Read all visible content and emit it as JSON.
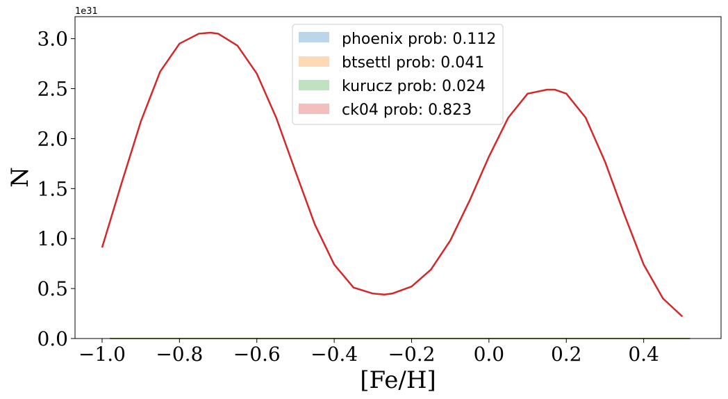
{
  "chart_data": {
    "type": "line",
    "title": "",
    "xlabel": "[Fe/H]",
    "ylabel": "N",
    "y_offset_text": "1e31",
    "xlim": [
      -1.07,
      0.6
    ],
    "ylim": [
      0,
      3.22
    ],
    "x_ticks": [
      -1.0,
      -0.8,
      -0.6,
      -0.4,
      -0.2,
      0.0,
      0.2,
      0.4
    ],
    "x_tick_labels": [
      "−1.0",
      "−0.8",
      "−0.6",
      "−0.4",
      "−0.2",
      "0.0",
      "0.2",
      "0.4"
    ],
    "y_ticks": [
      0.0,
      0.5,
      1.0,
      1.5,
      2.0,
      2.5,
      3.0
    ],
    "y_tick_labels": [
      "0.0",
      "0.5",
      "1.0",
      "1.5",
      "2.0",
      "2.5",
      "3.0"
    ],
    "grid": false,
    "legend_position": "top-center",
    "series": [
      {
        "name": "phoenix prob: 0.112",
        "color": "#1f77b4",
        "x": [
          -0.98,
          0.52
        ],
        "y": [
          0,
          0
        ]
      },
      {
        "name": "btsettl prob: 0.041",
        "color": "#ff7f0e",
        "x": [
          -0.98,
          0.52
        ],
        "y": [
          0,
          0
        ]
      },
      {
        "name": "kurucz prob: 0.024",
        "color": "#2ca02c",
        "x": [
          -0.98,
          0.52
        ],
        "y": [
          0,
          0
        ]
      },
      {
        "name": "ck04 prob: 0.823",
        "color": "#d62728",
        "x": [
          -1.0,
          -0.95,
          -0.9,
          -0.85,
          -0.8,
          -0.75,
          -0.72,
          -0.7,
          -0.65,
          -0.6,
          -0.55,
          -0.5,
          -0.45,
          -0.4,
          -0.35,
          -0.3,
          -0.27,
          -0.25,
          -0.2,
          -0.15,
          -0.1,
          -0.05,
          0.0,
          0.05,
          0.1,
          0.15,
          0.17,
          0.2,
          0.25,
          0.3,
          0.35,
          0.4,
          0.45,
          0.5
        ],
        "y": [
          0.91,
          1.55,
          2.17,
          2.67,
          2.95,
          3.05,
          3.06,
          3.05,
          2.93,
          2.65,
          2.21,
          1.67,
          1.14,
          0.74,
          0.51,
          0.45,
          0.44,
          0.45,
          0.52,
          0.69,
          0.98,
          1.38,
          1.82,
          2.21,
          2.45,
          2.49,
          2.49,
          2.45,
          2.21,
          1.77,
          1.24,
          0.74,
          0.4,
          0.22
        ]
      }
    ]
  }
}
